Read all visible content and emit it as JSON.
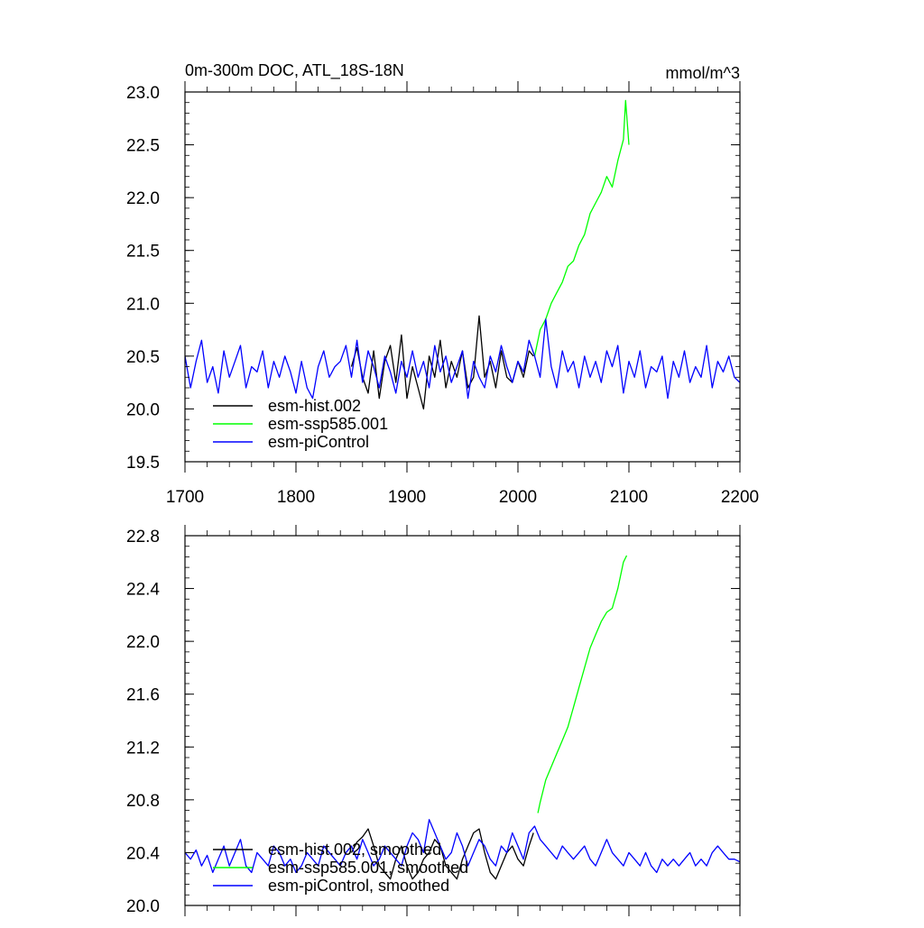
{
  "chart_data": [
    {
      "type": "line",
      "title": "0m-300m DOC, ATL_18S-18N",
      "units": "mmol/m^3",
      "xlim": [
        1700,
        2200
      ],
      "ylim": [
        19.5,
        23.0
      ],
      "x_ticks": [
        1700,
        1800,
        1900,
        2000,
        2100,
        2200
      ],
      "y_ticks": [
        19.5,
        20.0,
        20.5,
        21.0,
        21.5,
        22.0,
        22.5,
        23.0
      ],
      "y_tick_labels": [
        "19.5",
        "20.0",
        "20.5",
        "21.0",
        "21.5",
        "22.0",
        "22.5",
        "23.0"
      ],
      "grid": false,
      "legend_position": "bottom-left",
      "series": [
        {
          "name": "esm-hist.002",
          "color": "#000000",
          "x": [
            1850,
            1855,
            1860,
            1865,
            1870,
            1875,
            1880,
            1885,
            1890,
            1895,
            1900,
            1905,
            1910,
            1915,
            1920,
            1925,
            1930,
            1935,
            1940,
            1945,
            1950,
            1955,
            1960,
            1965,
            1970,
            1975,
            1980,
            1985,
            1990,
            1995,
            2000,
            2005,
            2010,
            2014
          ],
          "y": [
            20.4,
            20.58,
            20.3,
            20.15,
            20.55,
            20.1,
            20.45,
            20.6,
            20.25,
            20.7,
            20.1,
            20.4,
            20.2,
            20.0,
            20.5,
            20.3,
            20.65,
            20.2,
            20.45,
            20.3,
            20.55,
            20.2,
            20.3,
            20.88,
            20.3,
            20.45,
            20.2,
            20.55,
            20.3,
            20.25,
            20.45,
            20.3,
            20.55,
            20.5
          ]
        },
        {
          "name": "esm-ssp585.001",
          "color": "#00ff00",
          "x": [
            2015,
            2020,
            2025,
            2030,
            2035,
            2040,
            2045,
            2050,
            2055,
            2060,
            2065,
            2070,
            2075,
            2080,
            2085,
            2090,
            2095,
            2097,
            2100
          ],
          "y": [
            20.5,
            20.75,
            20.85,
            21.0,
            21.1,
            21.2,
            21.35,
            21.4,
            21.55,
            21.65,
            21.85,
            21.95,
            22.05,
            22.2,
            22.1,
            22.35,
            22.55,
            22.92,
            22.5
          ]
        },
        {
          "name": "esm-piControl",
          "color": "#0000ff",
          "x": [
            1700,
            1705,
            1710,
            1715,
            1720,
            1725,
            1730,
            1735,
            1740,
            1745,
            1750,
            1755,
            1760,
            1765,
            1770,
            1775,
            1780,
            1785,
            1790,
            1795,
            1800,
            1805,
            1810,
            1815,
            1820,
            1825,
            1830,
            1835,
            1840,
            1845,
            1850,
            1855,
            1860,
            1865,
            1870,
            1875,
            1880,
            1885,
            1890,
            1895,
            1900,
            1905,
            1910,
            1915,
            1920,
            1925,
            1930,
            1935,
            1940,
            1945,
            1950,
            1955,
            1960,
            1965,
            1970,
            1975,
            1980,
            1985,
            1990,
            1995,
            2000,
            2005,
            2010,
            2015,
            2020,
            2025,
            2030,
            2035,
            2040,
            2045,
            2050,
            2055,
            2060,
            2065,
            2070,
            2075,
            2080,
            2085,
            2090,
            2095,
            2100,
            2105,
            2110,
            2115,
            2120,
            2125,
            2130,
            2135,
            2140,
            2145,
            2150,
            2155,
            2160,
            2165,
            2170,
            2175,
            2180,
            2185,
            2190,
            2195,
            2200
          ],
          "y": [
            20.5,
            20.2,
            20.45,
            20.65,
            20.25,
            20.4,
            20.15,
            20.55,
            20.3,
            20.45,
            20.6,
            20.2,
            20.4,
            20.35,
            20.55,
            20.2,
            20.45,
            20.3,
            20.5,
            20.35,
            20.15,
            20.45,
            20.2,
            20.1,
            20.4,
            20.55,
            20.3,
            20.4,
            20.45,
            20.6,
            20.3,
            20.65,
            20.25,
            20.55,
            20.4,
            20.2,
            20.5,
            20.35,
            20.15,
            20.45,
            20.3,
            20.55,
            20.3,
            20.45,
            20.2,
            20.6,
            20.35,
            20.5,
            20.25,
            20.4,
            20.55,
            20.1,
            20.45,
            20.3,
            20.2,
            20.5,
            20.35,
            20.6,
            20.4,
            20.25,
            20.45,
            20.35,
            20.65,
            20.5,
            20.3,
            20.85,
            20.4,
            20.2,
            20.55,
            20.35,
            20.45,
            20.2,
            20.5,
            20.3,
            20.45,
            20.25,
            20.55,
            20.4,
            20.6,
            20.15,
            20.45,
            20.3,
            20.55,
            20.2,
            20.4,
            20.35,
            20.5,
            20.1,
            20.45,
            20.3,
            20.55,
            20.25,
            20.4,
            20.3,
            20.6,
            20.2,
            20.45,
            20.35,
            20.5,
            20.3,
            20.25
          ]
        }
      ]
    },
    {
      "type": "line",
      "xlim": [
        1700,
        2200
      ],
      "ylim": [
        20.0,
        22.8
      ],
      "x_ticks": [
        1700,
        1800,
        1900,
        2000,
        2100,
        2200
      ],
      "y_ticks": [
        20.0,
        20.4,
        20.8,
        21.2,
        21.6,
        22.0,
        22.4,
        22.8
      ],
      "y_tick_labels": [
        "20.0",
        "20.4",
        "20.8",
        "21.2",
        "21.6",
        "22.0",
        "22.4",
        "22.8"
      ],
      "grid": false,
      "legend_position": "bottom-left",
      "series": [
        {
          "name": "esm-hist.002, smoothed",
          "color": "#000000",
          "x": [
            1850,
            1855,
            1860,
            1865,
            1870,
            1875,
            1880,
            1885,
            1890,
            1895,
            1900,
            1905,
            1910,
            1915,
            1920,
            1925,
            1930,
            1935,
            1940,
            1945,
            1950,
            1955,
            1960,
            1965,
            1970,
            1975,
            1980,
            1985,
            1990,
            1995,
            2000,
            2005,
            2010,
            2014
          ],
          "y": [
            20.4,
            20.48,
            20.52,
            20.58,
            20.45,
            20.3,
            20.25,
            20.2,
            20.35,
            20.45,
            20.3,
            20.2,
            20.25,
            20.35,
            20.4,
            20.5,
            20.45,
            20.3,
            20.25,
            20.2,
            20.35,
            20.45,
            20.55,
            20.58,
            20.4,
            20.25,
            20.2,
            20.3,
            20.4,
            20.45,
            20.35,
            20.3,
            20.45,
            20.55
          ]
        },
        {
          "name": "esm-ssp585.001, smoothed",
          "color": "#00ff00",
          "x": [
            2018,
            2020,
            2025,
            2030,
            2035,
            2040,
            2045,
            2050,
            2055,
            2060,
            2065,
            2070,
            2075,
            2080,
            2085,
            2090,
            2095,
            2098
          ],
          "y": [
            20.7,
            20.78,
            20.95,
            21.05,
            21.15,
            21.25,
            21.35,
            21.5,
            21.65,
            21.8,
            21.95,
            22.05,
            22.15,
            22.22,
            22.25,
            22.4,
            22.6,
            22.65
          ]
        },
        {
          "name": "esm-piControl, smoothed",
          "color": "#0000ff",
          "x": [
            1700,
            1705,
            1710,
            1715,
            1720,
            1725,
            1730,
            1735,
            1740,
            1745,
            1750,
            1755,
            1760,
            1765,
            1770,
            1775,
            1780,
            1785,
            1790,
            1795,
            1800,
            1805,
            1810,
            1815,
            1820,
            1825,
            1830,
            1835,
            1840,
            1845,
            1850,
            1855,
            1860,
            1865,
            1870,
            1875,
            1880,
            1885,
            1890,
            1895,
            1900,
            1905,
            1910,
            1915,
            1920,
            1925,
            1930,
            1935,
            1940,
            1945,
            1950,
            1955,
            1960,
            1965,
            1970,
            1975,
            1980,
            1985,
            1990,
            1995,
            2000,
            2005,
            2010,
            2015,
            2020,
            2025,
            2030,
            2035,
            2040,
            2045,
            2050,
            2055,
            2060,
            2065,
            2070,
            2075,
            2080,
            2085,
            2090,
            2095,
            2100,
            2105,
            2110,
            2115,
            2120,
            2125,
            2130,
            2135,
            2140,
            2145,
            2150,
            2155,
            2160,
            2165,
            2170,
            2175,
            2180,
            2185,
            2190,
            2195,
            2200
          ],
          "y": [
            20.4,
            20.35,
            20.42,
            20.3,
            20.38,
            20.25,
            20.35,
            20.45,
            20.3,
            20.4,
            20.5,
            20.3,
            20.25,
            20.4,
            20.35,
            20.3,
            20.45,
            20.4,
            20.3,
            20.35,
            20.25,
            20.3,
            20.4,
            20.35,
            20.3,
            20.45,
            20.4,
            20.35,
            20.3,
            20.4,
            20.45,
            20.35,
            20.5,
            20.4,
            20.3,
            20.35,
            20.45,
            20.4,
            20.35,
            20.3,
            20.45,
            20.55,
            20.5,
            20.4,
            20.65,
            20.55,
            20.45,
            20.35,
            20.4,
            20.55,
            20.45,
            20.3,
            20.4,
            20.5,
            20.45,
            20.35,
            20.3,
            20.45,
            20.4,
            20.55,
            20.45,
            20.35,
            20.55,
            20.6,
            20.5,
            20.45,
            20.4,
            20.35,
            20.45,
            20.4,
            20.35,
            20.4,
            20.45,
            20.35,
            20.3,
            20.4,
            20.5,
            20.4,
            20.35,
            20.3,
            20.4,
            20.35,
            20.3,
            20.4,
            20.3,
            20.25,
            20.35,
            20.3,
            20.35,
            20.3,
            20.35,
            20.4,
            20.3,
            20.35,
            20.3,
            20.4,
            20.45,
            20.4,
            20.35,
            20.35,
            20.33
          ]
        }
      ]
    }
  ]
}
